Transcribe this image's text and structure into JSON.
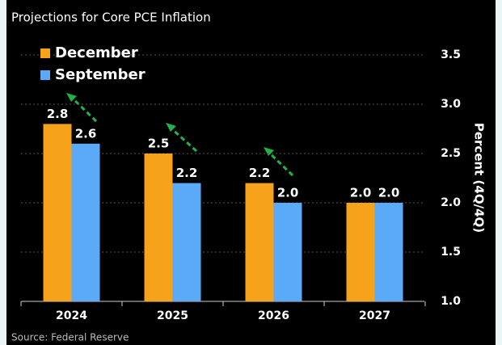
{
  "chart_data": {
    "type": "bar",
    "title": "Projections for Core PCE Inflation",
    "source": "Source: Federal Reserve",
    "y_axis_label": "Percent (4Q/4Q)",
    "categories": [
      "2024",
      "2025",
      "2026",
      "2027"
    ],
    "series": [
      {
        "name": "December",
        "color": "#f7a21b",
        "values": [
          2.8,
          2.5,
          2.2,
          2.0
        ],
        "value_labels": [
          "2.8",
          "2.5",
          "2.2",
          "2.0"
        ]
      },
      {
        "name": "September",
        "color": "#5aaaf7",
        "values": [
          2.6,
          2.2,
          2.0,
          2.0
        ],
        "value_labels": [
          "2.6",
          "2.2",
          "2.0",
          "2.0"
        ]
      }
    ],
    "ylim": [
      1.0,
      3.5
    ],
    "yticks": [
      {
        "value": 1.0,
        "label": "1.0"
      },
      1.5,
      {
        "value": 2.0,
        "label": "2.0"
      },
      2.5,
      {
        "value": 3.0,
        "label": "3.0"
      },
      3.5
    ],
    "grid": true,
    "legend": "top-left"
  }
}
